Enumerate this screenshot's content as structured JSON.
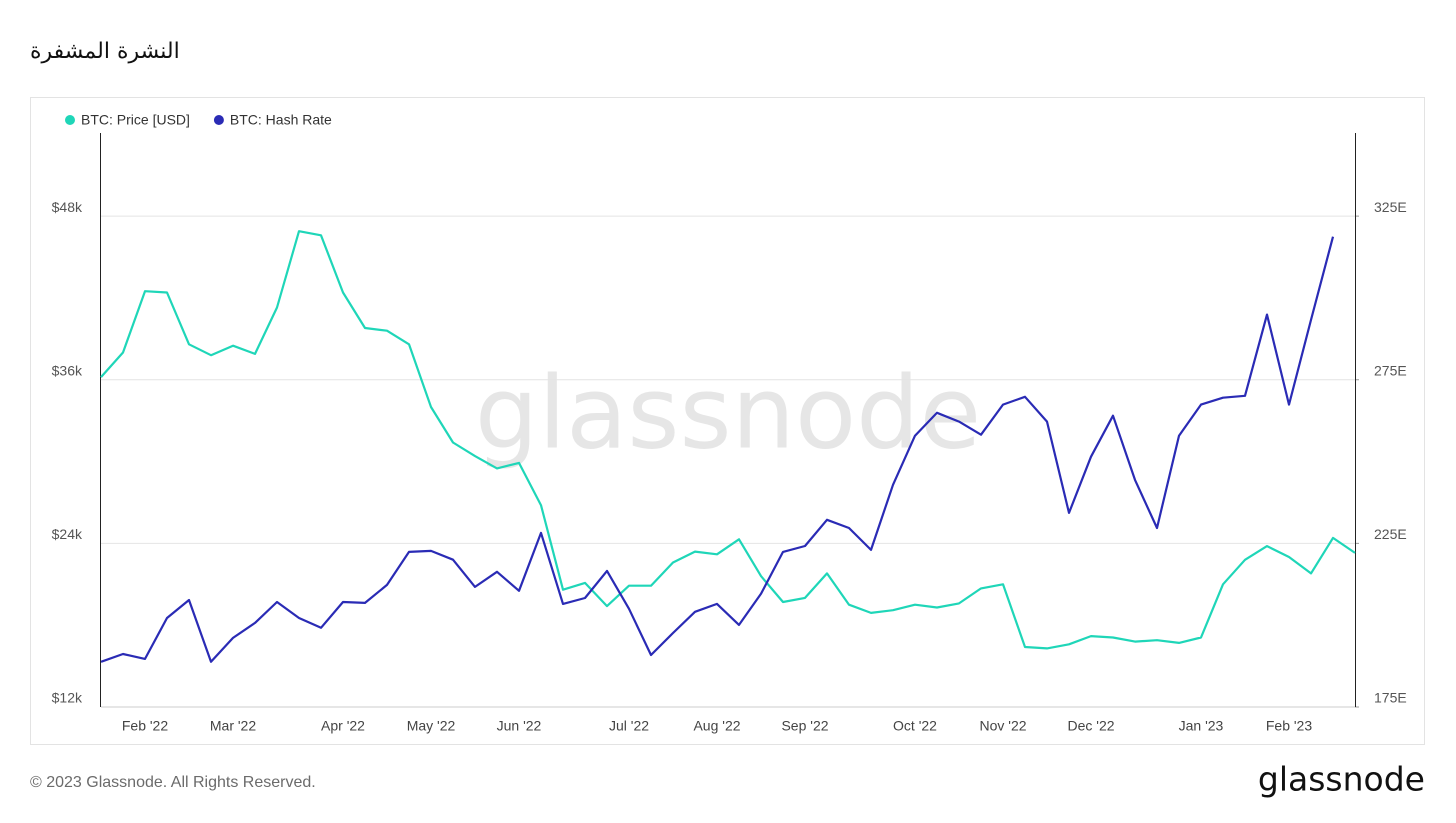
{
  "chart_data": {
    "type": "line",
    "title": "النشرة المشفرة",
    "watermark": "glassnode",
    "legend": "top-left",
    "grid": true,
    "categories": [
      null,
      null,
      "Feb '22",
      null,
      null,
      null,
      "Mar '22",
      null,
      null,
      null,
      null,
      "Apr '22",
      null,
      null,
      null,
      "May '22",
      null,
      null,
      null,
      "Jun '22",
      null,
      null,
      null,
      null,
      "Jul '22",
      null,
      null,
      null,
      "Aug '22",
      null,
      null,
      null,
      "Sep '22",
      null,
      null,
      null,
      null,
      "Oct '22",
      null,
      null,
      null,
      "Nov '22",
      null,
      null,
      null,
      "Dec '22",
      null,
      null,
      null,
      null,
      "Jan '23",
      null,
      null,
      null,
      "Feb '23",
      null,
      null,
      null
    ],
    "ylim": [
      12000,
      54100
    ],
    "yticks": [
      {
        "value": 12000,
        "label": "$12k"
      },
      {
        "value": 24000,
        "label": "$24k"
      },
      {
        "value": 36000,
        "label": "$36k"
      },
      {
        "value": 48000,
        "label": "$48k"
      }
    ],
    "y2lim": [
      175,
      350.4
    ],
    "y2ticks": [
      {
        "value": 175,
        "label": "175E"
      },
      {
        "value": 225,
        "label": "225E"
      },
      {
        "value": 275,
        "label": "275E"
      },
      {
        "value": 325,
        "label": "325E"
      }
    ],
    "series": [
      {
        "name": "BTC: Price [USD]",
        "color": "#1fd6b8",
        "values": [
          36200,
          38000,
          42500,
          42400,
          38600,
          37800,
          38500,
          37900,
          41300,
          46900,
          46600,
          42400,
          39800,
          39600,
          38600,
          34000,
          31400,
          30400,
          29500,
          29900,
          26800,
          20600,
          21100,
          19400,
          20900,
          20900,
          22600,
          23400,
          23200,
          24300,
          21600,
          19700,
          20000,
          21800,
          19500,
          18900,
          19100,
          19500,
          19300,
          19600,
          20700,
          21000,
          16400,
          16300,
          16600,
          17200,
          17100,
          16800,
          16900,
          16700,
          17100,
          21000,
          22800,
          23800,
          23000,
          21800,
          24400,
          23300
        ]
      },
      {
        "name": "BTC: Hash Rate",
        "color": "#2a2bb5",
        "axis": "y2",
        "values": [
          188.8,
          191.2,
          189.7,
          202.2,
          207.7,
          188.8,
          196.1,
          200.7,
          207.1,
          202.2,
          199.2,
          207.1,
          206.8,
          212.3,
          222.4,
          222.7,
          220.0,
          211.7,
          216.3,
          210.5,
          228.2,
          206.5,
          208.3,
          216.6,
          205.0,
          190.9,
          197.6,
          204.1,
          206.5,
          200.1,
          209.6,
          222.4,
          224.2,
          232.2,
          229.7,
          223.0,
          242.9,
          257.9,
          264.9,
          262.2,
          258.2,
          267.4,
          269.8,
          262.2,
          234.3,
          251.5,
          264.0,
          244.4,
          229.7,
          257.9,
          267.4,
          269.5,
          270.1,
          294.9,
          267.4,
          293.3,
          318.7,
          null
        ]
      }
    ]
  },
  "footer": {
    "copyright": "© 2023 Glassnode. All Rights Reserved.",
    "logo": "glassnode"
  }
}
